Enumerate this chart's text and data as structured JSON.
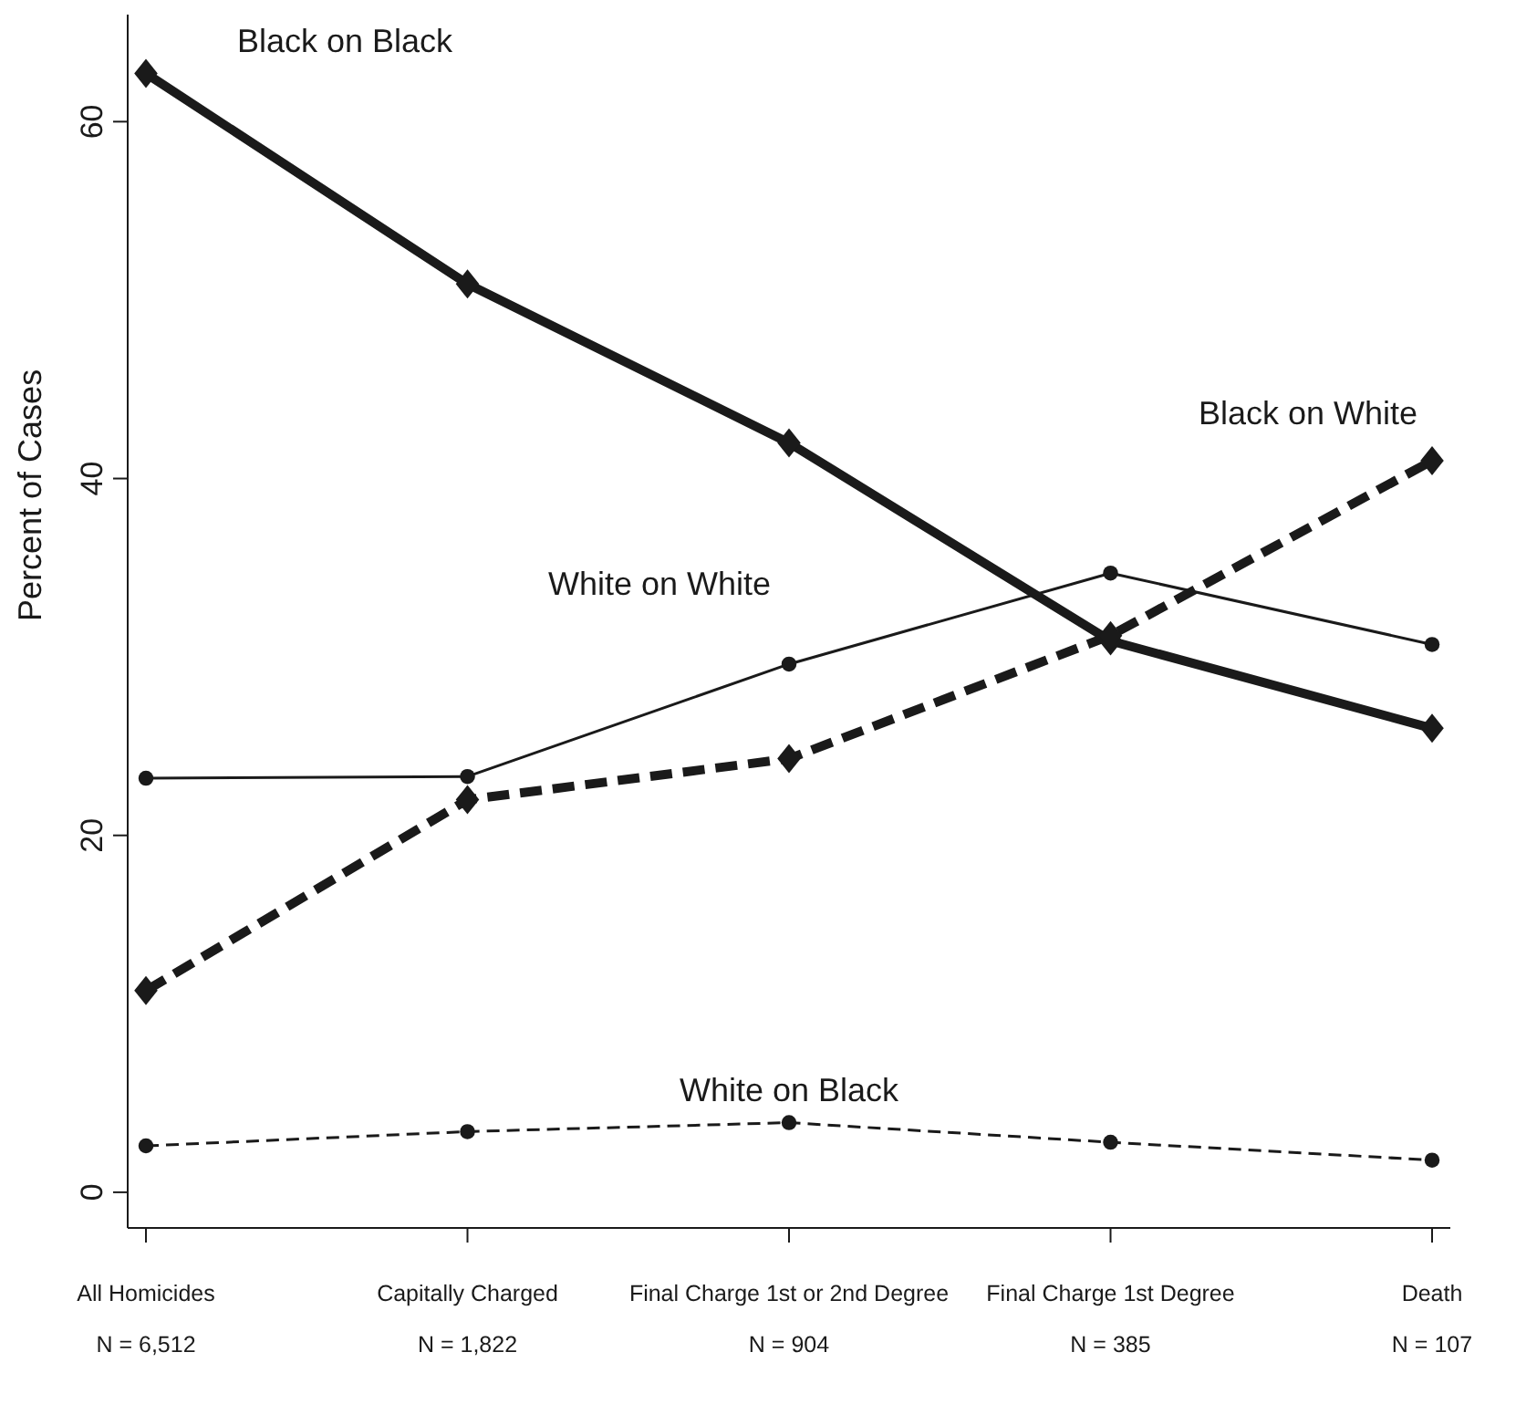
{
  "chart_data": {
    "type": "line",
    "ylabel": "Percent of Cases",
    "categories": [
      "All Homicides\nN = 6,512",
      "Capitally Charged\nN = 1,822",
      "Final Charge 1st or 2nd Degree\nN = 904",
      "Final Charge 1st Degree\nN = 385",
      "Death\nN = 107"
    ],
    "series": [
      {
        "name": "Black on Black",
        "color": "#1a1a1a",
        "values": [
          62.7,
          50.9,
          42.0,
          30.9,
          26.0
        ],
        "marker": "diamond",
        "line_style": "solid"
      },
      {
        "name": "White on White",
        "color": "#1a1a1a",
        "values": [
          23.2,
          23.3,
          29.6,
          34.7,
          30.7
        ],
        "marker": "circle",
        "line_style": "solid"
      },
      {
        "name": "Black on White",
        "color": "#1a1a1a",
        "values": [
          11.3,
          22.0,
          24.3,
          31.2,
          41.0
        ],
        "marker": "diamond",
        "line_style": "dashed"
      },
      {
        "name": "White on Black",
        "color": "#1a1a1a",
        "values": [
          2.6,
          3.4,
          3.9,
          2.8,
          1.8
        ],
        "marker": "circle",
        "line_style": "dashed"
      }
    ],
    "ylim": [
      -2,
      66
    ],
    "yticks": [
      0,
      20,
      40,
      60
    ]
  }
}
